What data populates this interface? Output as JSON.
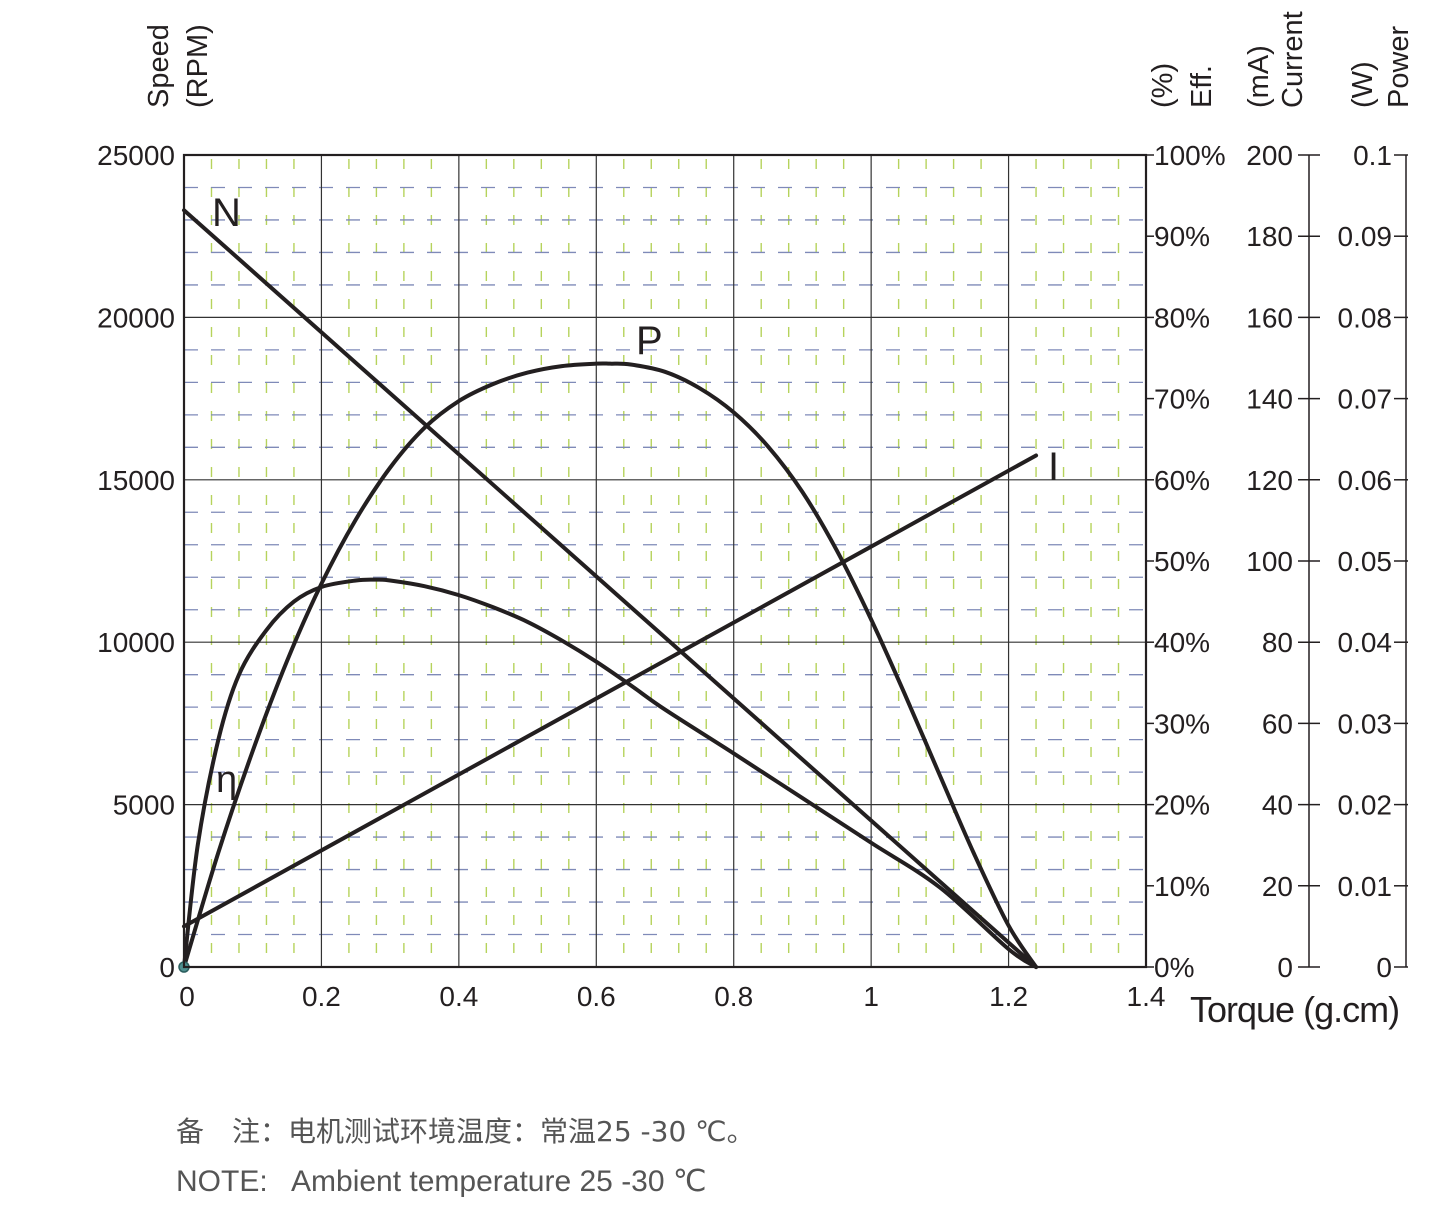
{
  "chart_data": {
    "type": "line",
    "x_axis": {
      "label": "Torque (g.cm)",
      "range": [
        0,
        1.4
      ],
      "ticks": [
        0,
        0.2,
        0.4,
        0.6,
        0.8,
        1,
        1.2,
        1.4
      ],
      "tick_labels": [
        "0",
        "0.2",
        "0.4",
        "0.6",
        "0.8",
        "1",
        "1.2",
        "1.4"
      ]
    },
    "y_axes": [
      {
        "id": "speed",
        "label_line1": "Speed",
        "label_line2": "(RPM)",
        "range": [
          0,
          25000
        ],
        "tick_labels": [
          "0",
          "5000",
          "10000",
          "15000",
          "20000",
          "25000"
        ]
      },
      {
        "id": "eff",
        "label_line1": "Eff.",
        "label_line2": "(%)",
        "range": [
          0,
          100
        ],
        "tick_labels": [
          "0%",
          "10%",
          "20%",
          "30%",
          "40%",
          "50%",
          "60%",
          "70%",
          "80%",
          "90%",
          "100%"
        ]
      },
      {
        "id": "current",
        "label_line1": "Current",
        "label_line2": "(mA)",
        "range": [
          0,
          200
        ],
        "tick_labels": [
          "0",
          "20",
          "40",
          "60",
          "80",
          "100",
          "120",
          "140",
          "160",
          "180",
          "200"
        ]
      },
      {
        "id": "power",
        "label_line1": "Power",
        "label_line2": "(W)",
        "range": [
          0,
          0.1
        ],
        "tick_labels": [
          "0",
          "0.01",
          "0.02",
          "0.03",
          "0.04",
          "0.05",
          "0.06",
          "0.07",
          "0.08",
          "0.09",
          "0.1"
        ]
      }
    ],
    "grid": true,
    "series": [
      {
        "name": "N",
        "axis": "speed",
        "x": [
          0,
          1.24
        ],
        "y": [
          23300,
          0
        ]
      },
      {
        "name": "I",
        "axis": "current",
        "x": [
          0,
          1.24
        ],
        "y": [
          10,
          126
        ]
      },
      {
        "name": "P",
        "axis": "power",
        "x": [
          0,
          0.05,
          0.1,
          0.15,
          0.2,
          0.25,
          0.3,
          0.35,
          0.4,
          0.45,
          0.5,
          0.55,
          0.6,
          0.62,
          0.65,
          0.7,
          0.75,
          0.8,
          0.85,
          0.9,
          0.95,
          1.0,
          1.05,
          1.1,
          1.15,
          1.2,
          1.24
        ],
        "y": [
          0,
          0.0141,
          0.0266,
          0.0377,
          0.0472,
          0.0551,
          0.0615,
          0.0664,
          0.0697,
          0.0718,
          0.0732,
          0.074,
          0.0743,
          0.0743,
          0.0742,
          0.0733,
          0.0713,
          0.0683,
          0.0641,
          0.0585,
          0.0513,
          0.0428,
          0.0334,
          0.0236,
          0.0139,
          0.0051,
          0
        ]
      },
      {
        "name": "η",
        "axis": "eff",
        "x": [
          0,
          0.02,
          0.05,
          0.08,
          0.12,
          0.16,
          0.2,
          0.25,
          0.28,
          0.3,
          0.35,
          0.4,
          0.45,
          0.5,
          0.55,
          0.6,
          0.65,
          0.7,
          0.8,
          0.9,
          1.0,
          1.1,
          1.2,
          1.24
        ],
        "y": [
          0,
          15,
          28,
          36,
          41.5,
          45,
          46.8,
          47.6,
          47.7,
          47.6,
          46.9,
          45.8,
          44.3,
          42.5,
          40.2,
          37.6,
          34.7,
          31.7,
          26.3,
          20.8,
          15.3,
          9.8,
          2.2,
          0
        ]
      }
    ],
    "colors": {
      "curve": "#231f20",
      "grid_major": "#333333",
      "grid_green": "#b6d35c",
      "grid_blue": "#7f8ab8"
    }
  },
  "note": {
    "chinese": "备　注：电机测试环境温度：常温25 -30 ℃。",
    "english": "NOTE:   Ambient temperature 25 -30 ℃"
  }
}
